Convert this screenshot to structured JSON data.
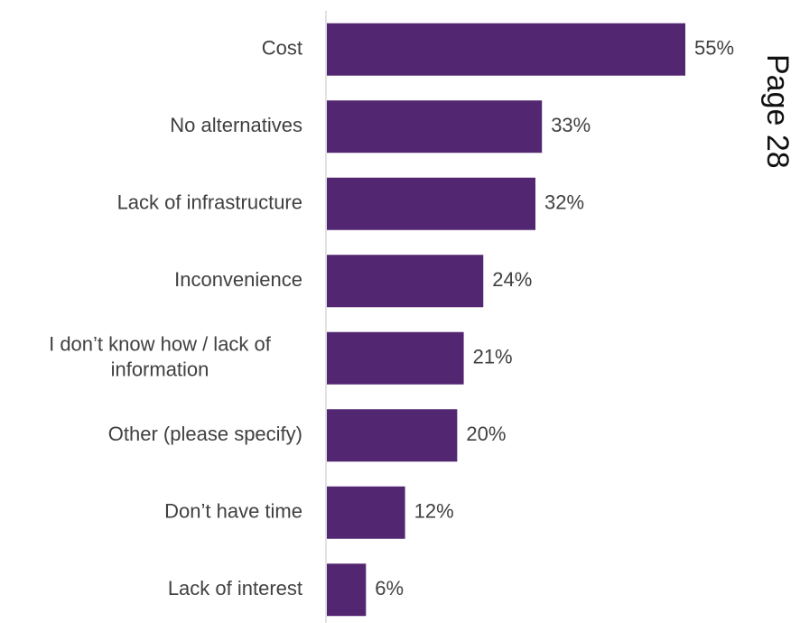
{
  "page_label": "Page 28",
  "colors": {
    "bar": "#532671",
    "axis": "#d9d9d9",
    "text": "#404040"
  },
  "chart_data": {
    "type": "bar",
    "orientation": "horizontal",
    "title": "",
    "xlabel": "",
    "ylabel": "",
    "categories": [
      [
        "Cost"
      ],
      [
        "No alternatives"
      ],
      [
        "Lack of infrastructure"
      ],
      [
        "Inconvenience"
      ],
      [
        "I don’t know how / lack of",
        "information"
      ],
      [
        "Other (please specify)"
      ],
      [
        "Don’t have time"
      ],
      [
        "Lack of interest"
      ]
    ],
    "values": [
      55,
      33,
      32,
      24,
      21,
      20,
      12,
      6
    ],
    "value_labels": [
      "55%",
      "33%",
      "32%",
      "24%",
      "21%",
      "20%",
      "12%",
      "6%"
    ],
    "xlim": [
      0,
      55
    ],
    "unit": "%",
    "grid": false,
    "legend": "none"
  }
}
